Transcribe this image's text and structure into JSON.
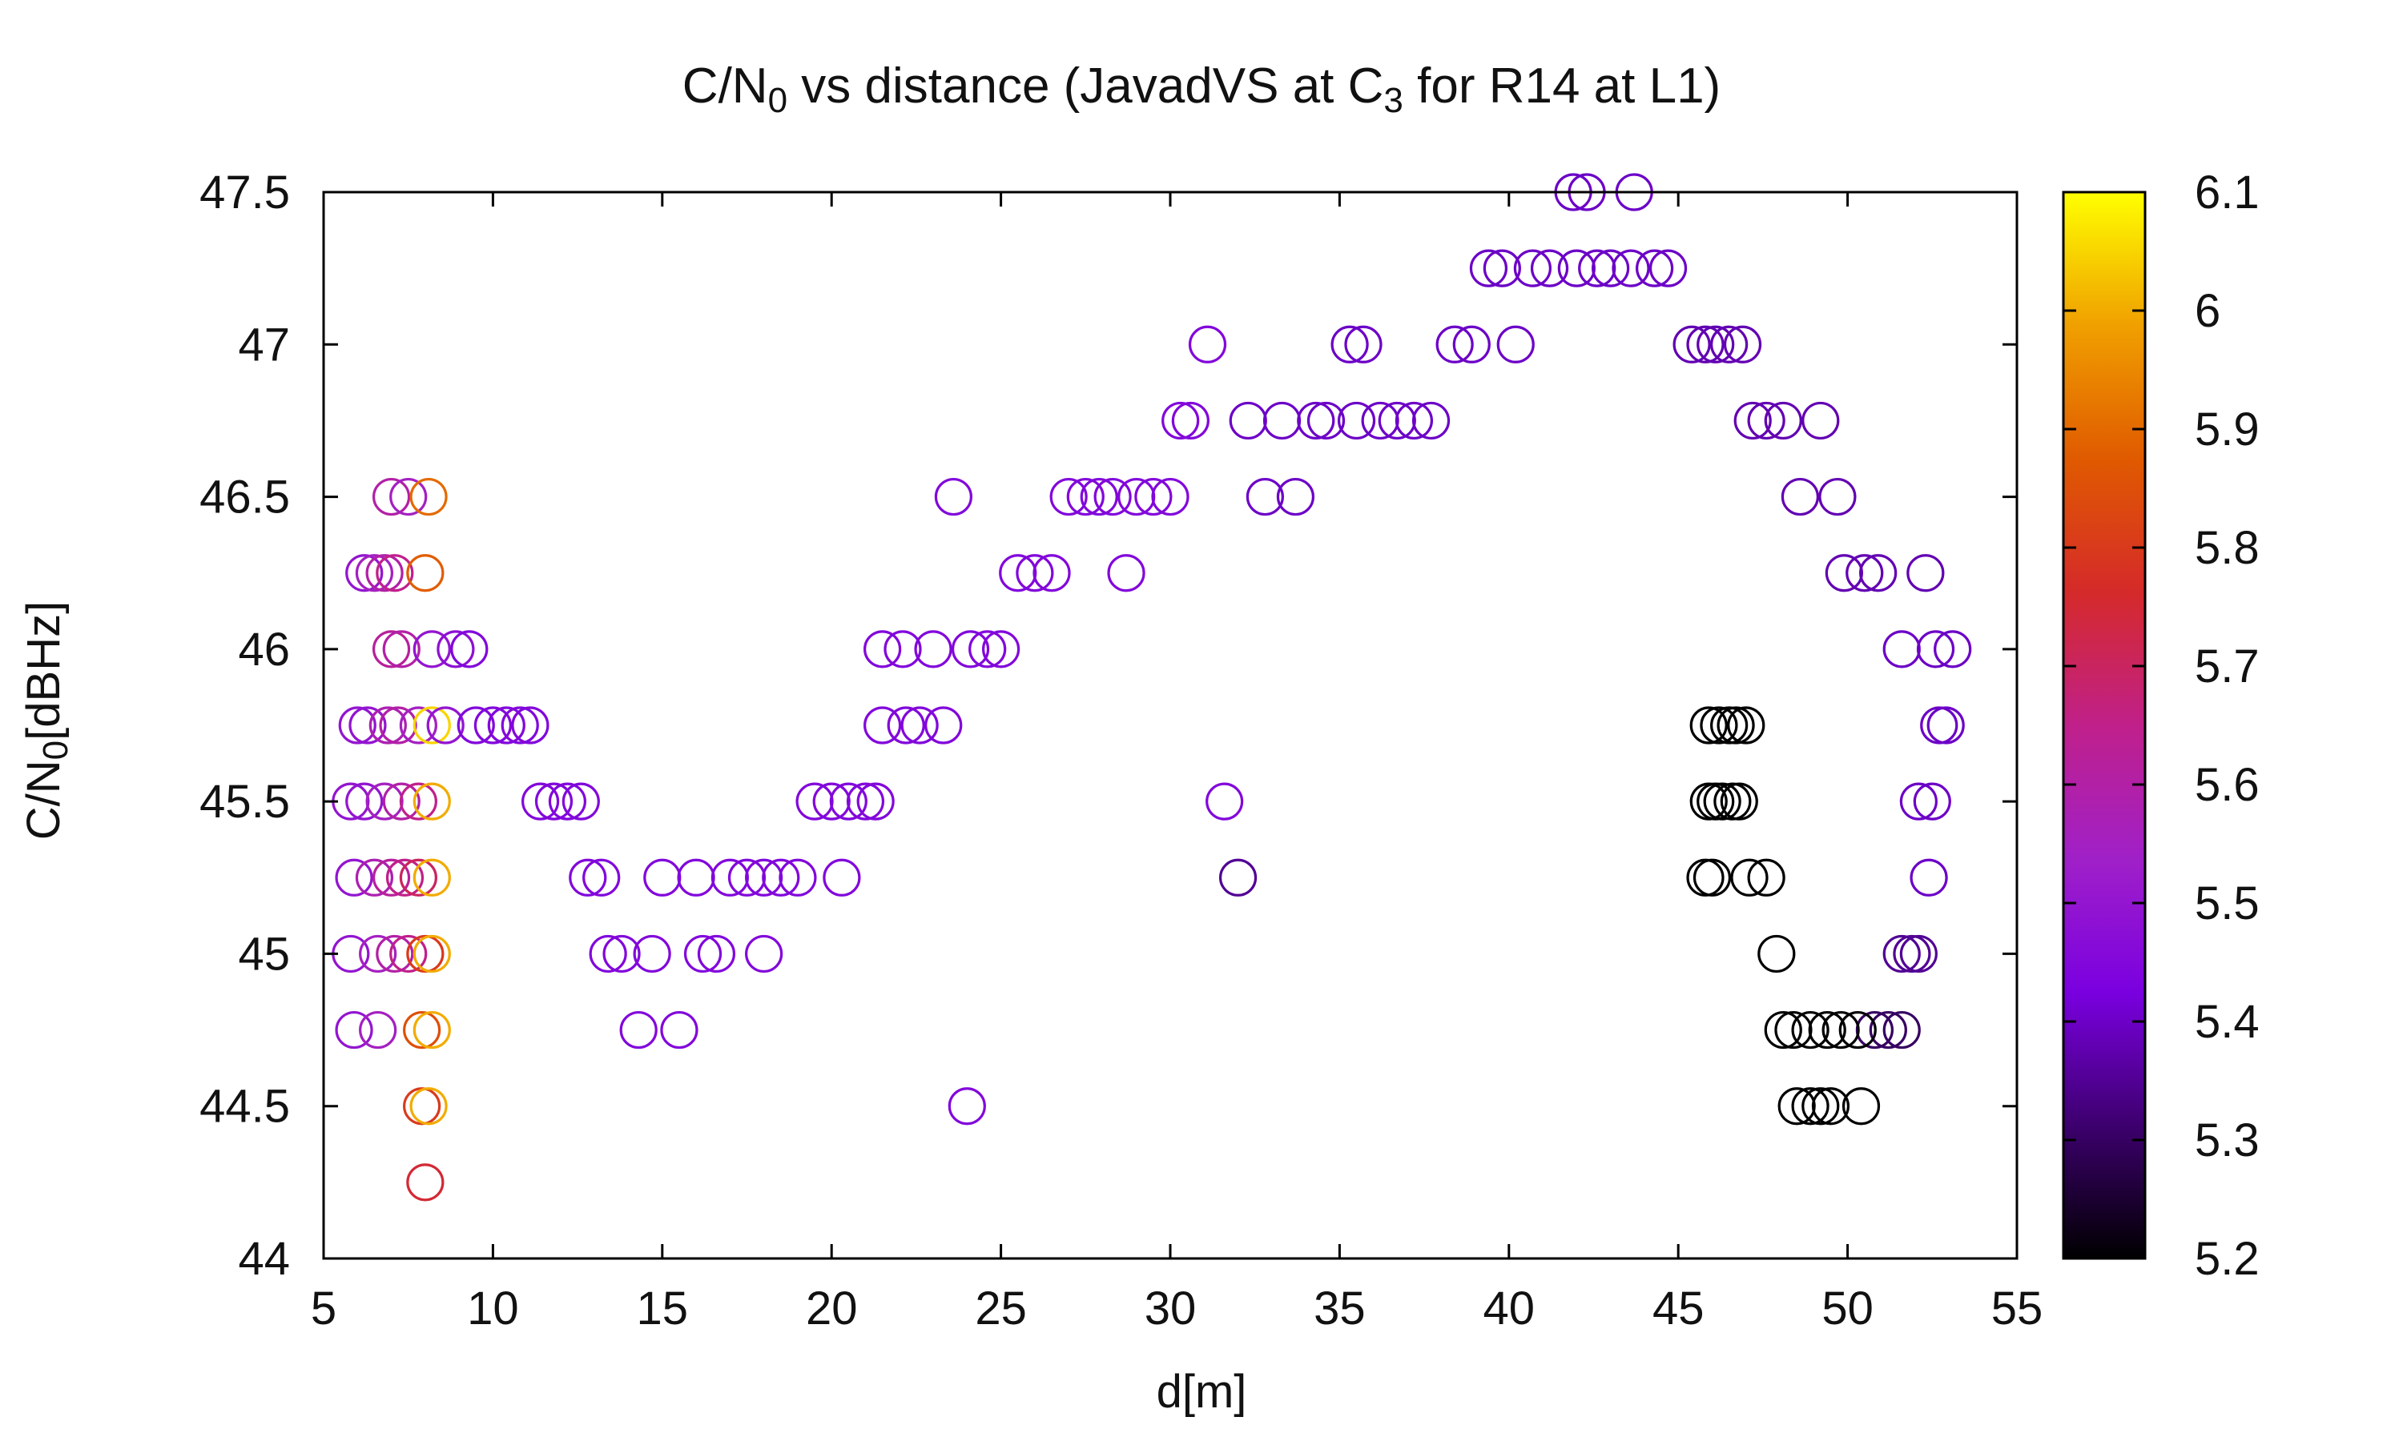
{
  "chart_data": {
    "type": "scatter",
    "title": {
      "prefix": "C/N",
      "sub": "0",
      "mid": " vs distance (JavadVS at C",
      "sub2": "3",
      "suffix": " for R14 at L1)"
    },
    "xlabel": "d[m]",
    "ylabel": {
      "prefix": "C/N",
      "sub": "0",
      "suffix": "[dBHz]"
    },
    "xlim": [
      5,
      55
    ],
    "ylim": [
      44,
      47.5
    ],
    "xticks": [
      "5",
      "10",
      "15",
      "20",
      "25",
      "30",
      "35",
      "40",
      "45",
      "50",
      "55"
    ],
    "yticks": [
      "44",
      "44.5",
      "45",
      "45.5",
      "46",
      "46.5",
      "47",
      "47.5"
    ],
    "colorbar": {
      "range": [
        5.2,
        6.1
      ],
      "ticks": [
        "5.2",
        "5.3",
        "5.4",
        "5.5",
        "5.6",
        "5.7",
        "5.8",
        "5.9",
        "6",
        "6.1"
      ],
      "colormap": [
        "#000000",
        "#3d006e",
        "#7a00e0",
        "#a020c8",
        "#c0208a",
        "#d52a2a",
        "#e05a00",
        "#f0a000",
        "#ffff00"
      ]
    },
    "marker": "open-circle",
    "grid": false,
    "points": [
      [
        6.2,
        46.25,
        5.5
      ],
      [
        6.5,
        46.25,
        5.55
      ],
      [
        6.8,
        46.25,
        5.6
      ],
      [
        7.1,
        46.25,
        5.65
      ],
      [
        7.0,
        46.5,
        5.6
      ],
      [
        7.5,
        46.5,
        5.55
      ],
      [
        8.1,
        46.5,
        5.9
      ],
      [
        8.0,
        46.25,
        5.88
      ],
      [
        7.0,
        46.0,
        5.62
      ],
      [
        7.3,
        46.0,
        5.6
      ],
      [
        8.2,
        46.0,
        5.5
      ],
      [
        8.9,
        46.0,
        5.48
      ],
      [
        9.3,
        46.0,
        5.45
      ],
      [
        6.0,
        45.75,
        5.5
      ],
      [
        6.3,
        45.75,
        5.5
      ],
      [
        6.9,
        45.75,
        5.58
      ],
      [
        7.2,
        45.75,
        5.6
      ],
      [
        7.8,
        45.75,
        5.55
      ],
      [
        8.2,
        45.75,
        6.05
      ],
      [
        8.6,
        45.75,
        5.5
      ],
      [
        9.5,
        45.75,
        5.45
      ],
      [
        10.0,
        45.75,
        5.45
      ],
      [
        10.4,
        45.75,
        5.45
      ],
      [
        10.8,
        45.75,
        5.45
      ],
      [
        11.1,
        45.75,
        5.45
      ],
      [
        5.8,
        45.5,
        5.5
      ],
      [
        6.2,
        45.5,
        5.5
      ],
      [
        6.8,
        45.5,
        5.55
      ],
      [
        7.3,
        45.5,
        5.6
      ],
      [
        7.8,
        45.5,
        5.65
      ],
      [
        8.2,
        45.5,
        6.0
      ],
      [
        11.4,
        45.5,
        5.45
      ],
      [
        11.8,
        45.5,
        5.45
      ],
      [
        12.2,
        45.5,
        5.45
      ],
      [
        12.6,
        45.5,
        5.45
      ],
      [
        5.9,
        45.25,
        5.5
      ],
      [
        6.5,
        45.25,
        5.58
      ],
      [
        7.0,
        45.25,
        5.62
      ],
      [
        7.4,
        45.25,
        5.65
      ],
      [
        7.8,
        45.25,
        5.7
      ],
      [
        8.2,
        45.25,
        6.0
      ],
      [
        12.8,
        45.25,
        5.45
      ],
      [
        13.2,
        45.25,
        5.45
      ],
      [
        15.0,
        45.25,
        5.45
      ],
      [
        16.0,
        45.25,
        5.45
      ],
      [
        17.0,
        45.25,
        5.45
      ],
      [
        17.5,
        45.25,
        5.45
      ],
      [
        18.0,
        45.25,
        5.45
      ],
      [
        18.5,
        45.25,
        5.45
      ],
      [
        19.0,
        45.25,
        5.45
      ],
      [
        20.3,
        45.25,
        5.45
      ],
      [
        5.8,
        45.0,
        5.5
      ],
      [
        6.6,
        45.0,
        5.55
      ],
      [
        7.1,
        45.0,
        5.6
      ],
      [
        7.5,
        45.0,
        5.65
      ],
      [
        8.0,
        45.0,
        5.8
      ],
      [
        8.2,
        45.0,
        6.0
      ],
      [
        13.4,
        45.0,
        5.45
      ],
      [
        13.8,
        45.0,
        5.45
      ],
      [
        14.7,
        45.0,
        5.45
      ],
      [
        16.2,
        45.0,
        5.45
      ],
      [
        16.6,
        45.0,
        5.45
      ],
      [
        18.0,
        45.0,
        5.45
      ],
      [
        5.9,
        44.75,
        5.5
      ],
      [
        6.6,
        44.75,
        5.55
      ],
      [
        7.9,
        44.75,
        5.85
      ],
      [
        8.2,
        44.75,
        6.0
      ],
      [
        14.3,
        44.75,
        5.45
      ],
      [
        15.5,
        44.75,
        5.45
      ],
      [
        7.9,
        44.5,
        5.8
      ],
      [
        8.1,
        44.5,
        6.0
      ],
      [
        8.0,
        44.25,
        5.75
      ],
      [
        19.5,
        45.5,
        5.45
      ],
      [
        20.0,
        45.5,
        5.45
      ],
      [
        20.5,
        45.5,
        5.45
      ],
      [
        21.0,
        45.5,
        5.45
      ],
      [
        21.3,
        45.5,
        5.45
      ],
      [
        21.5,
        45.75,
        5.45
      ],
      [
        22.2,
        45.75,
        5.45
      ],
      [
        22.6,
        45.75,
        5.45
      ],
      [
        23.3,
        45.75,
        5.45
      ],
      [
        21.5,
        46.0,
        5.45
      ],
      [
        22.1,
        46.0,
        5.45
      ],
      [
        23.0,
        46.0,
        5.45
      ],
      [
        24.1,
        46.0,
        5.45
      ],
      [
        24.6,
        46.0,
        5.45
      ],
      [
        25.0,
        46.0,
        5.45
      ],
      [
        25.5,
        46.25,
        5.45
      ],
      [
        26.0,
        46.25,
        5.45
      ],
      [
        26.5,
        46.25,
        5.45
      ],
      [
        28.7,
        46.25,
        5.45
      ],
      [
        23.6,
        46.5,
        5.45
      ],
      [
        27.0,
        46.5,
        5.45
      ],
      [
        27.5,
        46.5,
        5.45
      ],
      [
        27.9,
        46.5,
        5.45
      ],
      [
        28.3,
        46.5,
        5.45
      ],
      [
        29.0,
        46.5,
        5.45
      ],
      [
        29.5,
        46.5,
        5.45
      ],
      [
        30.0,
        46.5,
        5.45
      ],
      [
        24.0,
        44.5,
        5.45
      ],
      [
        30.3,
        46.75,
        5.45
      ],
      [
        30.6,
        46.75,
        5.45
      ],
      [
        32.3,
        46.75,
        5.4
      ],
      [
        33.3,
        46.75,
        5.4
      ],
      [
        34.3,
        46.75,
        5.4
      ],
      [
        34.6,
        46.75,
        5.4
      ],
      [
        35.5,
        46.75,
        5.4
      ],
      [
        36.2,
        46.75,
        5.4
      ],
      [
        36.7,
        46.75,
        5.4
      ],
      [
        37.2,
        46.75,
        5.4
      ],
      [
        37.7,
        46.75,
        5.4
      ],
      [
        32.8,
        46.5,
        5.4
      ],
      [
        33.7,
        46.5,
        5.4
      ],
      [
        31.1,
        47.0,
        5.45
      ],
      [
        35.3,
        47.0,
        5.4
      ],
      [
        35.7,
        47.0,
        5.4
      ],
      [
        38.4,
        47.0,
        5.4
      ],
      [
        38.9,
        47.0,
        5.4
      ],
      [
        40.2,
        47.0,
        5.4
      ],
      [
        31.6,
        45.5,
        5.45
      ],
      [
        32.0,
        45.25,
        5.35
      ],
      [
        39.4,
        47.25,
        5.4
      ],
      [
        39.8,
        47.25,
        5.4
      ],
      [
        40.7,
        47.25,
        5.4
      ],
      [
        41.2,
        47.25,
        5.4
      ],
      [
        42.0,
        47.25,
        5.4
      ],
      [
        42.6,
        47.25,
        5.4
      ],
      [
        43.0,
        47.25,
        5.4
      ],
      [
        43.6,
        47.25,
        5.4
      ],
      [
        44.3,
        47.25,
        5.4
      ],
      [
        44.7,
        47.25,
        5.4
      ],
      [
        41.9,
        47.5,
        5.4
      ],
      [
        42.3,
        47.5,
        5.4
      ],
      [
        43.7,
        47.5,
        5.4
      ],
      [
        45.4,
        47.0,
        5.38
      ],
      [
        45.8,
        47.0,
        5.38
      ],
      [
        46.1,
        47.0,
        5.38
      ],
      [
        46.5,
        47.0,
        5.38
      ],
      [
        46.9,
        47.0,
        5.38
      ],
      [
        47.2,
        46.75,
        5.38
      ],
      [
        47.6,
        46.75,
        5.38
      ],
      [
        48.1,
        46.75,
        5.38
      ],
      [
        49.2,
        46.75,
        5.38
      ],
      [
        48.6,
        46.5,
        5.38
      ],
      [
        49.7,
        46.5,
        5.38
      ],
      [
        49.9,
        46.25,
        5.38
      ],
      [
        50.5,
        46.25,
        5.38
      ],
      [
        50.9,
        46.25,
        5.38
      ],
      [
        52.3,
        46.25,
        5.38
      ],
      [
        51.6,
        46.0,
        5.4
      ],
      [
        52.6,
        46.0,
        5.4
      ],
      [
        53.1,
        46.0,
        5.4
      ],
      [
        52.7,
        45.75,
        5.4
      ],
      [
        52.9,
        45.75,
        5.4
      ],
      [
        52.1,
        45.5,
        5.4
      ],
      [
        52.5,
        45.5,
        5.4
      ],
      [
        52.4,
        45.25,
        5.4
      ],
      [
        51.6,
        45.0,
        5.35
      ],
      [
        51.9,
        45.0,
        5.35
      ],
      [
        52.1,
        45.0,
        5.35
      ],
      [
        50.8,
        44.75,
        5.3
      ],
      [
        51.2,
        44.75,
        5.3
      ],
      [
        51.6,
        44.75,
        5.3
      ],
      [
        45.9,
        45.75,
        5.2
      ],
      [
        46.2,
        45.75,
        5.2
      ],
      [
        46.5,
        45.75,
        5.2
      ],
      [
        46.7,
        45.75,
        5.2
      ],
      [
        47.0,
        45.75,
        5.2
      ],
      [
        45.9,
        45.5,
        5.2
      ],
      [
        46.1,
        45.5,
        5.2
      ],
      [
        46.3,
        45.5,
        5.2
      ],
      [
        46.6,
        45.5,
        5.2
      ],
      [
        46.8,
        45.5,
        5.2
      ],
      [
        45.8,
        45.25,
        5.2
      ],
      [
        46.0,
        45.25,
        5.2
      ],
      [
        47.1,
        45.25,
        5.2
      ],
      [
        47.6,
        45.25,
        5.2
      ],
      [
        47.9,
        45.0,
        5.2
      ],
      [
        48.1,
        44.75,
        5.2
      ],
      [
        48.4,
        44.75,
        5.2
      ],
      [
        48.9,
        44.75,
        5.2
      ],
      [
        49.4,
        44.75,
        5.2
      ],
      [
        49.8,
        44.75,
        5.2
      ],
      [
        50.3,
        44.75,
        5.2
      ],
      [
        48.5,
        44.5,
        5.2
      ],
      [
        48.9,
        44.5,
        5.2
      ],
      [
        49.2,
        44.5,
        5.2
      ],
      [
        49.5,
        44.5,
        5.2
      ],
      [
        50.4,
        44.5,
        5.2
      ]
    ]
  }
}
